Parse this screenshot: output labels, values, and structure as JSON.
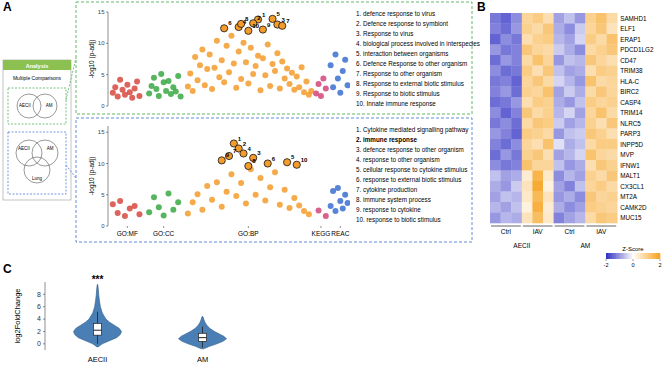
{
  "panel_labels": [
    "A",
    "B",
    "C"
  ],
  "diagram": {
    "title": "Analysis",
    "subtitle": "Multiple Comparisons",
    "venn_top": [
      "AECII",
      "AM"
    ],
    "venn_bottom": [
      "AECII",
      "AM",
      "Lung"
    ]
  },
  "term_lists": [
    {
      "items": [
        "1. defence response to virus",
        "2. Defence response to symbiont",
        "3. Response to virus",
        "4. biological process involved in interspecies",
        "5. interaction between organisms",
        "6. Defence Response to other organism",
        "7. Response to other organism",
        "8. Response to external biotic stimulus",
        "9. Response to biotic stimulus",
        "10. Innate immune response"
      ],
      "bold": []
    },
    {
      "items": [
        "1. Cytokine mediated signalling pathway",
        "2. immune response",
        "3. defence response to other organism",
        "4. response to other organism",
        "5. cellular response to cytokine stimulus",
        "6. response to external biotic stimulus",
        "7. cytokine production",
        "8. immune system process",
        "9. response to cytokine",
        "10. response to biotic stimulus"
      ],
      "bold": [
        1
      ]
    }
  ],
  "chart_data": [
    {
      "type": "scatter",
      "ylabel": "-log10 (p-adj)",
      "xlim": [
        0,
        100
      ],
      "ylim": [
        0,
        15
      ],
      "yticks": [
        0,
        5,
        10,
        15
      ],
      "series": [
        {
          "name": "GO:MF",
          "color": "#d6493f",
          "x": [
            2,
            3,
            4,
            5,
            6,
            7,
            8,
            9,
            10,
            11,
            12,
            13
          ],
          "values": [
            2.1,
            3.0,
            1.5,
            4.2,
            2.6,
            1.8,
            3.4,
            2.2,
            1.3,
            2.8,
            3.9,
            1.6
          ]
        },
        {
          "name": "GO:CC",
          "color": "#3aa843",
          "x": [
            17,
            18,
            19,
            20,
            21,
            22,
            23,
            24,
            25,
            26,
            27,
            28,
            29,
            30
          ],
          "values": [
            2.0,
            3.2,
            4.5,
            2.7,
            1.6,
            5.1,
            3.8,
            2.4,
            4.0,
            1.9,
            3.0,
            2.3,
            4.8,
            1.5
          ]
        },
        {
          "name": "GO:BP",
          "color": "#f39c2b",
          "x": [
            33,
            34,
            35,
            36,
            37,
            38,
            39,
            40,
            41,
            42,
            43,
            44,
            45,
            46,
            47,
            48,
            49,
            50,
            51,
            52,
            53,
            54,
            55,
            56,
            57,
            58,
            59,
            60,
            61,
            62,
            63,
            64,
            65,
            66,
            67,
            68,
            69,
            70,
            71,
            72,
            73,
            74,
            75,
            76,
            77,
            78,
            79,
            80,
            81,
            82,
            83,
            84
          ],
          "values": [
            3.1,
            5.2,
            2.4,
            7.8,
            4.1,
            6.5,
            9.0,
            3.3,
            5.9,
            8.2,
            2.7,
            6.1,
            10.4,
            4.6,
            7.3,
            3.8,
            9.6,
            5.4,
            11.2,
            6.8,
            2.9,
            8.7,
            4.3,
            10.1,
            7.0,
            3.6,
            9.3,
            5.1,
            6.4,
            8.0,
            2.5,
            7.6,
            4.9,
            9.8,
            3.2,
            6.7,
            5.6,
            8.4,
            2.8,
            7.1,
            4.4,
            6.0,
            3.5,
            5.3,
            2.6,
            4.7,
            3.0,
            6.2,
            2.2,
            3.9,
            1.8,
            2.4
          ]
        },
        {
          "name": "KEGG",
          "color": "#d1457a",
          "x": [
            86,
            87,
            88,
            89,
            90
          ],
          "values": [
            2.0,
            3.5,
            1.6,
            4.4,
            2.8
          ]
        },
        {
          "name": "REAC",
          "color": "#3b6fd0",
          "x": [
            92,
            93,
            94,
            95,
            96,
            97,
            98,
            99
          ],
          "values": [
            6.5,
            3.0,
            8.2,
            4.4,
            2.1,
            5.6,
            7.4,
            3.3
          ]
        }
      ],
      "highlights": {
        "color": "#f39c2b",
        "x": [
          62,
          60,
          70,
          54,
          68,
          48,
          72,
          55,
          64,
          58
        ],
        "values": [
          13.8,
          13.2,
          13.0,
          12.6,
          13.9,
          12.4,
          12.8,
          13.1,
          12.2,
          12.0
        ],
        "labels": [
          1,
          2,
          3,
          4,
          5,
          6,
          7,
          8,
          9,
          10
        ]
      }
    },
    {
      "type": "scatter",
      "ylabel": "-log10 (p-adj)",
      "xlim": [
        0,
        100
      ],
      "ylim": [
        0,
        16
      ],
      "yticks": [
        0,
        5,
        10,
        15
      ],
      "xticks": [
        {
          "value": 8,
          "label": "GO:MF"
        },
        {
          "value": 23,
          "label": "GO:CC"
        },
        {
          "value": 58,
          "label": "GO:BP"
        },
        {
          "value": 88,
          "label": "KEGG"
        },
        {
          "value": 96,
          "label": "REAC"
        }
      ],
      "series": [
        {
          "name": "GO:MF",
          "color": "#d6493f",
          "x": [
            2,
            4,
            5,
            7,
            9,
            11,
            13
          ],
          "values": [
            3.5,
            2.1,
            4.0,
            1.6,
            2.8,
            3.2,
            1.9
          ]
        },
        {
          "name": "GO:CC",
          "color": "#3aa843",
          "x": [
            17,
            19,
            21,
            23,
            25,
            27,
            29
          ],
          "values": [
            2.2,
            4.6,
            3.0,
            1.7,
            5.2,
            2.6,
            3.8
          ]
        },
        {
          "name": "GO:BP",
          "color": "#f39c2b",
          "x": [
            33,
            35,
            37,
            39,
            41,
            43,
            45,
            47,
            49,
            51,
            53,
            55,
            57,
            59,
            61,
            63,
            65,
            67,
            69,
            71,
            73,
            75,
            77,
            79,
            81,
            83
          ],
          "values": [
            2.0,
            3.8,
            5.1,
            2.6,
            6.4,
            4.2,
            7.0,
            3.1,
            5.5,
            8.3,
            4.8,
            6.9,
            3.6,
            9.1,
            5.0,
            7.7,
            4.1,
            6.2,
            8.6,
            3.4,
            5.8,
            2.9,
            4.5,
            3.3,
            2.4,
            1.9
          ]
        },
        {
          "name": "KEGG",
          "color": "#d1457a",
          "x": [
            87,
            90
          ],
          "values": [
            2.5,
            1.6
          ]
        },
        {
          "name": "REAC",
          "color": "#3b6fd0",
          "x": [
            92,
            93,
            94,
            95,
            96,
            97,
            98,
            99
          ],
          "values": [
            3.2,
            5.6,
            2.4,
            6.1,
            4.0,
            2.8,
            5.0,
            3.7
          ]
        }
      ],
      "highlights": {
        "color": "#f39c2b",
        "x": [
          52,
          54,
          60,
          56,
          74,
          66,
          50,
          58,
          47,
          78
        ],
        "values": [
          13.2,
          12.4,
          10.9,
          11.6,
          10.2,
          10.0,
          11.2,
          9.6,
          10.5,
          9.8
        ],
        "labels": [
          1,
          2,
          3,
          4,
          5,
          6,
          7,
          8,
          9,
          10
        ]
      }
    },
    {
      "type": "heatmap",
      "rows": [
        "SAMHD1",
        "ELF1",
        "ERAP1",
        "PDCD1LG2",
        "CD47",
        "TRIM38",
        "HLA-C",
        "BIRC2",
        "CASP4",
        "TRIM14",
        "NLRC5",
        "PARP3",
        "INPP5D",
        "MVP",
        "IFNW1",
        "MALT1",
        "CX3CL1",
        "MT2A",
        "CAMK2D",
        "MUC15"
      ],
      "cells": [
        [
          -1.3,
          -1.5,
          -1.1,
          0.9,
          1.1,
          0.7,
          -0.9,
          -0.6,
          -1.0,
          1.0,
          1.3,
          0.8
        ],
        [
          -1.2,
          -1.4,
          -1.0,
          1.0,
          0.8,
          1.2,
          -0.8,
          -1.1,
          -0.5,
          0.9,
          1.2,
          0.6
        ],
        [
          -1.5,
          -1.1,
          -1.3,
          0.7,
          1.0,
          1.1,
          -0.7,
          -0.9,
          -0.4,
          1.1,
          0.8,
          1.3
        ],
        [
          -1.0,
          -1.3,
          -1.2,
          1.2,
          0.9,
          0.8,
          -0.5,
          -0.8,
          -1.1,
          0.8,
          1.0,
          1.2
        ],
        [
          -1.4,
          -1.0,
          -1.2,
          0.8,
          1.3,
          0.9,
          -1.0,
          -0.6,
          -0.7,
          1.2,
          0.9,
          0.7
        ],
        [
          -1.1,
          -1.4,
          -1.3,
          1.1,
          0.7,
          1.2,
          -0.6,
          -0.9,
          -0.8,
          0.7,
          1.1,
          1.0
        ],
        [
          -1.3,
          -1.2,
          -1.5,
          0.9,
          1.2,
          0.8,
          -0.4,
          -0.7,
          -1.0,
          1.3,
          0.8,
          0.9
        ],
        [
          -1.2,
          -1.0,
          -1.4,
          1.0,
          0.9,
          1.3,
          -0.9,
          -0.5,
          -0.8,
          0.8,
          1.2,
          0.9
        ],
        [
          -1.4,
          -1.3,
          -1.0,
          0.7,
          1.1,
          1.0,
          -0.8,
          -1.0,
          -0.6,
          1.1,
          0.9,
          1.0
        ],
        [
          -1.1,
          -1.5,
          -1.2,
          1.2,
          0.8,
          1.0,
          -0.7,
          -0.4,
          -0.9,
          0.9,
          1.3,
          0.8
        ],
        [
          -1.3,
          -1.1,
          -1.4,
          0.8,
          1.2,
          1.1,
          -0.5,
          -0.9,
          -0.7,
          1.0,
          0.7,
          1.2
        ],
        [
          -1.0,
          -1.2,
          -1.5,
          1.1,
          1.0,
          0.8,
          -1.0,
          -0.6,
          -0.5,
          1.2,
          1.0,
          0.7
        ],
        [
          -1.2,
          -1.4,
          -1.1,
          0.9,
          0.7,
          1.3,
          -0.3,
          -0.8,
          -0.6,
          0.8,
          1.1,
          1.1
        ],
        [
          -1.4,
          -1.0,
          -1.3,
          1.0,
          1.2,
          0.7,
          -0.9,
          -0.7,
          -0.4,
          1.3,
          0.9,
          0.8
        ],
        [
          -1.1,
          -1.3,
          -1.2,
          1.3,
          0.9,
          0.9,
          -0.6,
          -1.0,
          -0.8,
          0.7,
          1.2,
          1.0
        ],
        [
          -0.6,
          -0.9,
          -0.8,
          0.4,
          1.6,
          0.5,
          -1.1,
          -0.7,
          -0.9,
          1.0,
          0.8,
          1.2
        ],
        [
          -0.8,
          -1.0,
          -0.5,
          0.6,
          1.8,
          0.3,
          -0.9,
          -1.2,
          -0.6,
          0.9,
          1.1,
          0.8
        ],
        [
          -0.9,
          -0.6,
          -0.7,
          0.5,
          1.5,
          0.6,
          -1.0,
          -0.8,
          -1.1,
          1.2,
          0.9,
          1.0
        ],
        [
          -0.7,
          -0.9,
          -0.6,
          0.3,
          1.7,
          0.4,
          -0.8,
          -1.1,
          -0.9,
          1.1,
          1.0,
          0.9
        ],
        [
          -1.0,
          -0.7,
          -0.8,
          0.6,
          1.4,
          0.5,
          -1.2,
          -0.9,
          -0.7,
          0.8,
          1.2,
          1.1
        ]
      ],
      "condition_labels": [
        "Ctrl",
        "IAV",
        "Ctrl",
        "IAV"
      ],
      "group_labels": [
        "AECII",
        "AM"
      ],
      "colorbar": {
        "title": "Z-Score",
        "range": [
          -2,
          2
        ],
        "ticks": [
          -2,
          0,
          2
        ]
      }
    },
    {
      "type": "violin",
      "ylabel": "log2FoldChange",
      "categories": [
        "AECII",
        "AM"
      ],
      "color": "#4a7fb5",
      "ylim": [
        -1,
        10
      ],
      "yticks": [
        0,
        2,
        4,
        6,
        8
      ],
      "median": [
        2.2,
        1.0
      ],
      "q1": [
        1.4,
        0.4
      ],
      "q3": [
        3.3,
        1.7
      ],
      "whisker_low": [
        0.0,
        -0.6
      ],
      "whisker_high": [
        5.2,
        2.8
      ],
      "density": [
        {
          "y": [
            -0.5,
            0,
            0.5,
            1,
            1.5,
            2,
            2.5,
            3,
            3.5,
            4,
            5,
            6,
            7,
            8,
            9,
            9.6
          ],
          "width": [
            0.02,
            0.2,
            0.5,
            0.8,
            0.95,
            1.0,
            0.9,
            0.7,
            0.5,
            0.35,
            0.2,
            0.12,
            0.08,
            0.05,
            0.03,
            0.01
          ]
        },
        {
          "y": [
            -0.8,
            -0.4,
            0,
            0.4,
            0.8,
            1.2,
            1.6,
            2,
            2.5,
            3,
            3.5,
            4,
            4.4
          ],
          "width": [
            0.05,
            0.3,
            0.6,
            0.85,
            1.0,
            0.9,
            0.7,
            0.5,
            0.3,
            0.18,
            0.1,
            0.05,
            0.02
          ]
        }
      ],
      "annotations": [
        {
          "text": "***",
          "x": "AECII"
        }
      ]
    }
  ]
}
